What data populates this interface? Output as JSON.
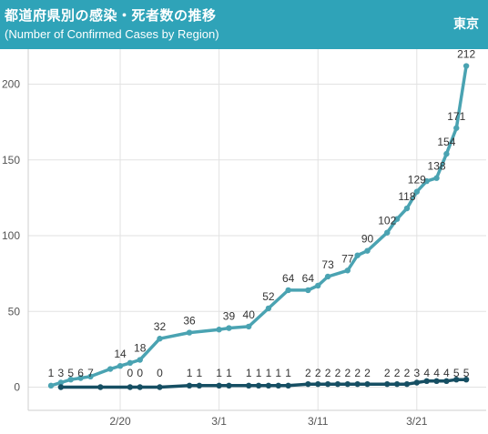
{
  "header": {
    "title": "都道府県別の感染・死者数の推移",
    "subtitle": "(Number of Confirmed Cases by Region)",
    "region": "東京"
  },
  "colors": {
    "header_bg": "#2fa3b8",
    "confirmed": "#4aa3b2",
    "deaths": "#164f63",
    "grid": "#e2e2e2",
    "axis_text": "#555555",
    "label_text": "#333333"
  },
  "chart_data": {
    "type": "line",
    "x_start": "2020-02-13",
    "xticks": [
      {
        "label": "2/20",
        "day": 7
      },
      {
        "label": "3/1",
        "day": 17
      },
      {
        "label": "3/11",
        "day": 27
      },
      {
        "label": "3/21",
        "day": 37
      }
    ],
    "yticks": [
      0,
      50,
      100,
      150,
      200
    ],
    "ylim": [
      0,
      220
    ],
    "grid": true,
    "series": [
      {
        "name": "",
        "color": "#4aa3b2",
        "points": [
          {
            "day": 0,
            "value": 1,
            "label": "1"
          },
          {
            "day": 1,
            "value": 3,
            "label": "3"
          },
          {
            "day": 2,
            "value": 5,
            "label": "5"
          },
          {
            "day": 3,
            "value": 6,
            "label": "6"
          },
          {
            "day": 4,
            "value": 7,
            "label": "7"
          },
          {
            "day": 6,
            "value": 12,
            "label": ""
          },
          {
            "day": 7,
            "value": 14,
            "label": "14"
          },
          {
            "day": 8,
            "value": 16,
            "label": ""
          },
          {
            "day": 9,
            "value": 18,
            "label": "18"
          },
          {
            "day": 11,
            "value": 32,
            "label": "32"
          },
          {
            "day": 14,
            "value": 36,
            "label": "36"
          },
          {
            "day": 17,
            "value": 38,
            "label": ""
          },
          {
            "day": 18,
            "value": 39,
            "label": "39"
          },
          {
            "day": 20,
            "value": 40,
            "label": "40"
          },
          {
            "day": 22,
            "value": 52,
            "label": "52"
          },
          {
            "day": 24,
            "value": 64,
            "label": "64"
          },
          {
            "day": 26,
            "value": 64,
            "label": "64"
          },
          {
            "day": 27,
            "value": 67,
            "label": ""
          },
          {
            "day": 28,
            "value": 73,
            "label": "73"
          },
          {
            "day": 30,
            "value": 77,
            "label": "77"
          },
          {
            "day": 31,
            "value": 87,
            "label": ""
          },
          {
            "day": 32,
            "value": 90,
            "label": "90"
          },
          {
            "day": 34,
            "value": 102,
            "label": "102"
          },
          {
            "day": 35,
            "value": 111,
            "label": ""
          },
          {
            "day": 36,
            "value": 118,
            "label": "118"
          },
          {
            "day": 37,
            "value": 129,
            "label": "129"
          },
          {
            "day": 38,
            "value": 136,
            "label": ""
          },
          {
            "day": 39,
            "value": 138,
            "label": "138"
          },
          {
            "day": 40,
            "value": 154,
            "label": "154"
          },
          {
            "day": 41,
            "value": 171,
            "label": "171"
          },
          {
            "day": 42,
            "value": 212,
            "label": "212"
          }
        ]
      },
      {
        "name": "",
        "color": "#164f63",
        "points": [
          {
            "day": 1,
            "value": 0,
            "label": ""
          },
          {
            "day": 5,
            "value": 0,
            "label": ""
          },
          {
            "day": 8,
            "value": 0,
            "label": "0"
          },
          {
            "day": 9,
            "value": 0,
            "label": "0"
          },
          {
            "day": 11,
            "value": 0,
            "label": "0"
          },
          {
            "day": 14,
            "value": 1,
            "label": "1"
          },
          {
            "day": 15,
            "value": 1,
            "label": "1"
          },
          {
            "day": 17,
            "value": 1,
            "label": "1"
          },
          {
            "day": 18,
            "value": 1,
            "label": "1"
          },
          {
            "day": 20,
            "value": 1,
            "label": "1"
          },
          {
            "day": 21,
            "value": 1,
            "label": "1"
          },
          {
            "day": 22,
            "value": 1,
            "label": "1"
          },
          {
            "day": 23,
            "value": 1,
            "label": "1"
          },
          {
            "day": 24,
            "value": 1,
            "label": "1"
          },
          {
            "day": 26,
            "value": 2,
            "label": "2"
          },
          {
            "day": 27,
            "value": 2,
            "label": "2"
          },
          {
            "day": 28,
            "value": 2,
            "label": "2"
          },
          {
            "day": 29,
            "value": 2,
            "label": "2"
          },
          {
            "day": 30,
            "value": 2,
            "label": "2"
          },
          {
            "day": 31,
            "value": 2,
            "label": "2"
          },
          {
            "day": 32,
            "value": 2,
            "label": "2"
          },
          {
            "day": 34,
            "value": 2,
            "label": "2"
          },
          {
            "day": 35,
            "value": 2,
            "label": "2"
          },
          {
            "day": 36,
            "value": 2,
            "label": "2"
          },
          {
            "day": 37,
            "value": 3,
            "label": "3"
          },
          {
            "day": 38,
            "value": 4,
            "label": "4"
          },
          {
            "day": 39,
            "value": 4,
            "label": "4"
          },
          {
            "day": 40,
            "value": 4,
            "label": "4"
          },
          {
            "day": 41,
            "value": 5,
            "label": "5"
          },
          {
            "day": 42,
            "value": 5,
            "label": "5"
          }
        ]
      }
    ]
  }
}
